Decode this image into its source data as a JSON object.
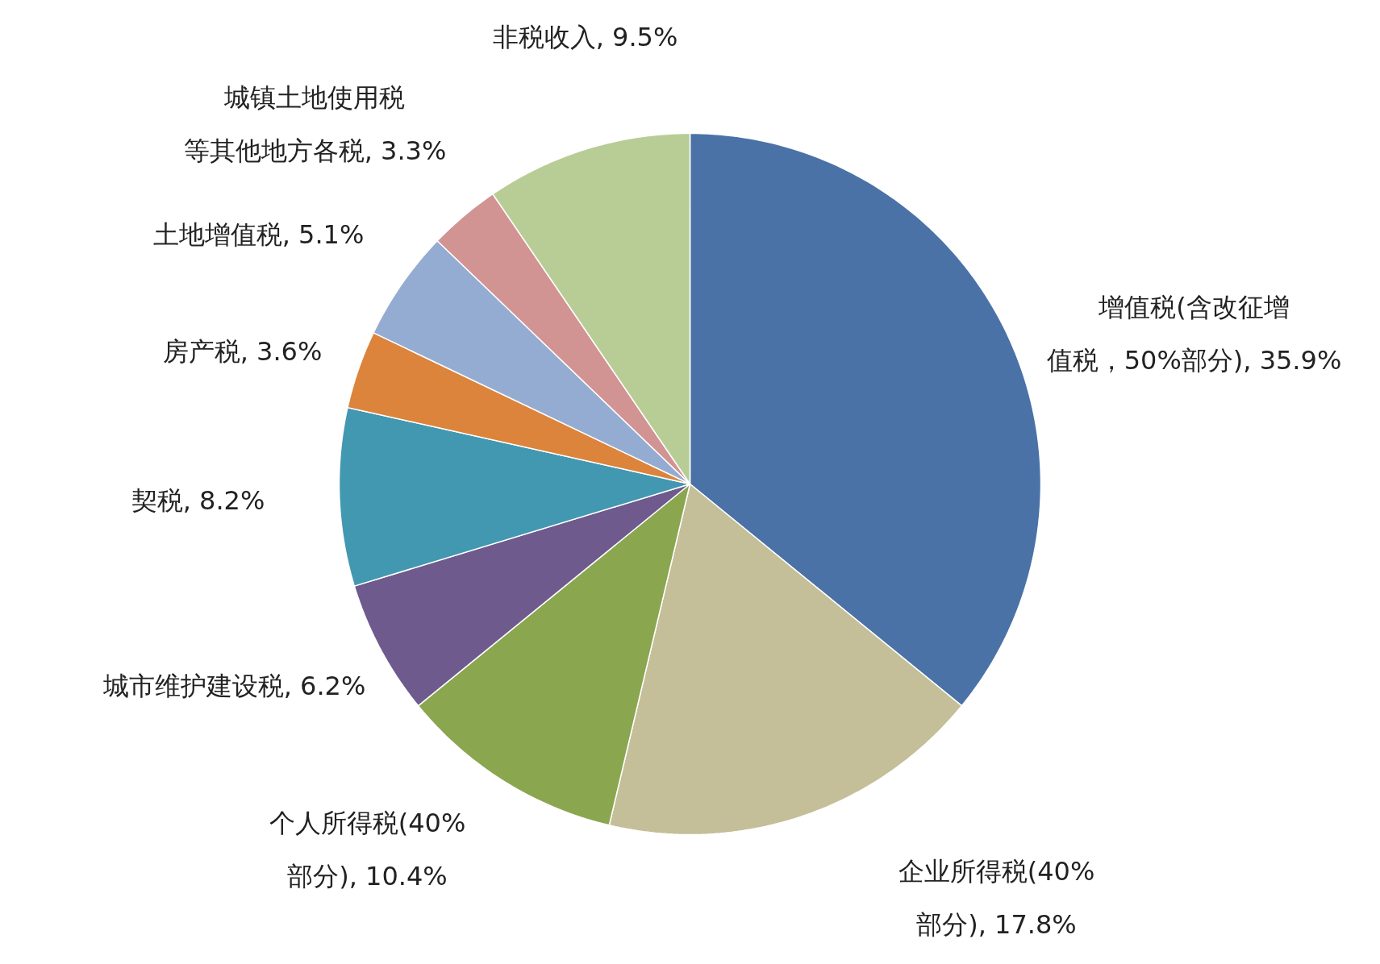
{
  "chart_data": {
    "type": "pie",
    "data_labels": true,
    "categories": [
      "增值税(含改征增值税，50%部分)",
      "企业所得税(40%部分)",
      "个人所得税(40%部分)",
      "城市维护建设税",
      "契税",
      "房产税",
      "土地增值税",
      "城镇土地使用税等其他地方各税",
      "非税收入"
    ],
    "values": [
      35.9,
      17.8,
      10.4,
      6.2,
      8.2,
      3.6,
      5.1,
      3.3,
      9.5
    ],
    "value_labels": [
      "35.9%",
      "17.8%",
      "10.4%",
      "6.2%",
      "8.2%",
      "3.6%",
      "5.1%",
      "3.3%",
      "9.5%"
    ],
    "colors": [
      "#4a72a6",
      "#c4bf98",
      "#8aa64f",
      "#6f5a8e",
      "#4298b0",
      "#dc843c",
      "#95acd2",
      "#d29393",
      "#b8cd96"
    ]
  }
}
